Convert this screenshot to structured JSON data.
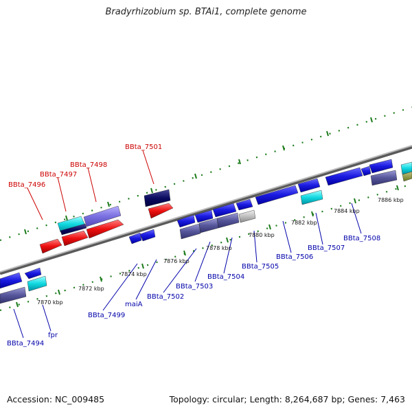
{
  "title": "Bradyrhizobium sp. BTAi1, complete genome",
  "footer": {
    "accession": "Accession: NC_009485",
    "topology": "Topology: circular; Length: 8,264,687 bp; Genes: 7,463"
  },
  "colors": {
    "backbone": "#8a8a8a",
    "ticks": "#1a7a1a",
    "label_top": "#cc0000",
    "label_bottom": "#0000aa"
  },
  "scale_labels": [
    "7870 kbp",
    "7872 kbp",
    "7874 kbp",
    "7876 kbp",
    "7878 kbp",
    "7880 kbp",
    "7882 kbp",
    "7884 kbp",
    "7886 kbp"
  ],
  "gene_labels_top": [
    "BBta_7496",
    "BBta_7497",
    "BBta_7498",
    "BBta_7501"
  ],
  "gene_labels_bottom": [
    "BBta_7494",
    "fpr",
    "BBta_7499",
    "maiA",
    "BBta_7502",
    "BBta_7503",
    "BBta_7504",
    "BBta_7505",
    "BBta_7506",
    "BBta_7507",
    "BBta_7508"
  ]
}
